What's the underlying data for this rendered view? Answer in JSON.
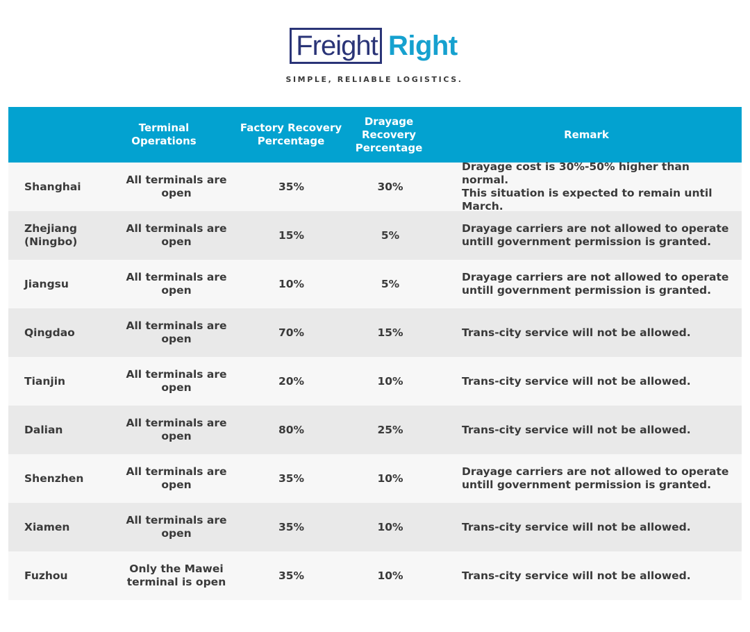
{
  "brand": {
    "logo_left": "Freight",
    "logo_right": "Right",
    "tagline": "SIMPLE, RELIABLE LOGISTICS.",
    "colors": {
      "navy": "#2a3477",
      "blue": "#16a1cf"
    }
  },
  "table": {
    "header_color": "#03a2d0",
    "headers": {
      "city": "",
      "terminal": "Terminal\nOperations",
      "factory": "Factory Recovery\nPercentage",
      "drayage": "Drayage\nRecovery\nPercentage",
      "remark": "Remark"
    },
    "rows": [
      {
        "city": "Shanghai",
        "terminal": "All terminals are open",
        "factory": "35%",
        "drayage": "30%",
        "remark": "Drayage cost is 30%-50% higher than normal.\nThis situation is expected to remain until March."
      },
      {
        "city": "Zhejiang\n(Ningbo)",
        "terminal": "All terminals are open",
        "factory": "15%",
        "drayage": "5%",
        "remark": "Drayage carriers are not allowed to operate\nuntill government permission is granted."
      },
      {
        "city": "Jiangsu",
        "terminal": "All terminals are open",
        "factory": "10%",
        "drayage": "5%",
        "remark": "Drayage carriers are not allowed to operate\nuntill government permission is granted."
      },
      {
        "city": "Qingdao",
        "terminal": "All terminals are open",
        "factory": "70%",
        "drayage": "15%",
        "remark": "Trans-city service will not be allowed."
      },
      {
        "city": "Tianjin",
        "terminal": "All terminals are open",
        "factory": "20%",
        "drayage": "10%",
        "remark": "Trans-city service will not be allowed."
      },
      {
        "city": "Dalian",
        "terminal": "All terminals are open",
        "factory": "80%",
        "drayage": "25%",
        "remark": "Trans-city service will not be allowed."
      },
      {
        "city": "Shenzhen",
        "terminal": "All terminals are open",
        "factory": "35%",
        "drayage": "10%",
        "remark": "Drayage carriers are not allowed to operate\nuntill government permission is granted."
      },
      {
        "city": "Xiamen",
        "terminal": "All terminals are open",
        "factory": "35%",
        "drayage": "10%",
        "remark": "Trans-city service will not be allowed."
      },
      {
        "city": "Fuzhou",
        "terminal": "Only the Mawei\nterminal is open",
        "factory": "35%",
        "drayage": "10%",
        "remark": "Trans-city service will not be allowed."
      }
    ]
  }
}
